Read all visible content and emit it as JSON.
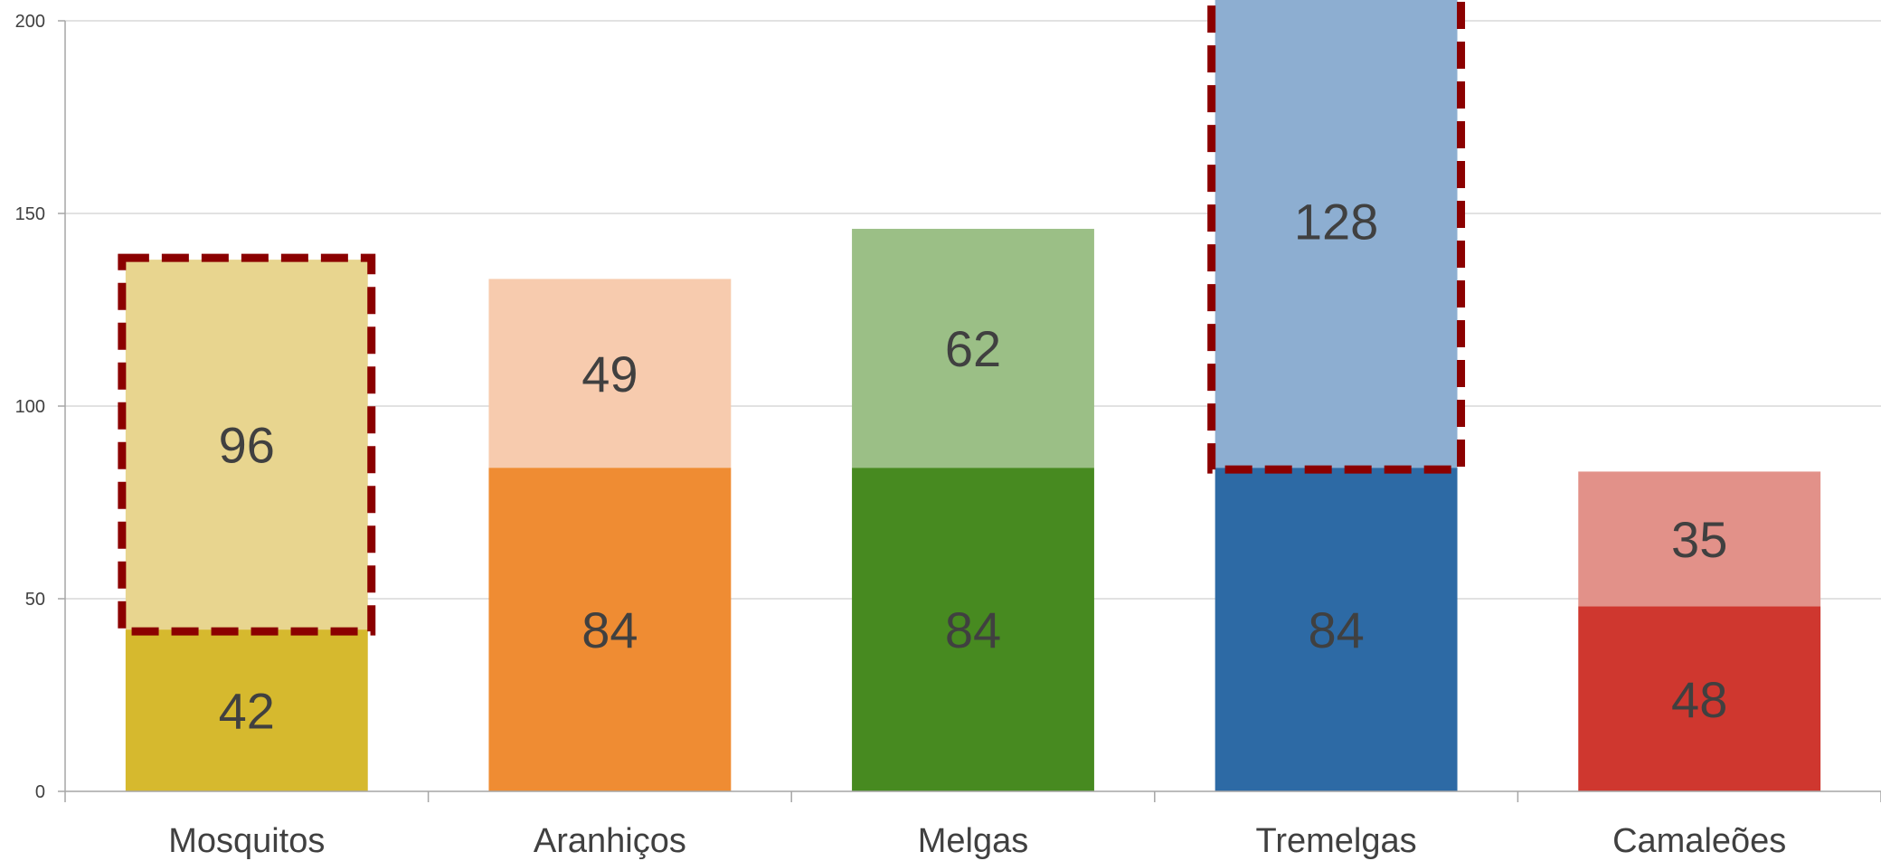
{
  "chart_data": {
    "type": "bar",
    "stacked": true,
    "categories": [
      "Mosquitos",
      "Aranhiços",
      "Melgas",
      "Tremelgas",
      "Camaleões"
    ],
    "series": [
      {
        "values": [
          42,
          84,
          84,
          84,
          48
        ],
        "colors": [
          "#d6b92e",
          "#ef8c33",
          "#478a20",
          "#2d6aa5",
          "#cf372f"
        ]
      },
      {
        "values": [
          96,
          49,
          62,
          128,
          35
        ],
        "colors": [
          "#e8d58f",
          "#f7cbae",
          "#9bbf86",
          "#8daed1",
          "#e29189"
        ]
      }
    ],
    "highlighted": [
      {
        "category": "Mosquitos",
        "series_index": 1
      },
      {
        "category": "Tremelgas",
        "series_index": 1
      }
    ],
    "highlight_color": "#8b0000",
    "ylim": [
      0,
      200
    ],
    "yticks": [
      "0",
      "50",
      "100",
      "150",
      "200"
    ],
    "ytick_values": [
      0,
      50,
      100,
      150,
      200
    ],
    "grid": true,
    "legend": "none",
    "label_color": "#404040",
    "grid_color": "#d9d9d9",
    "axis_color": "#a6a6a6"
  }
}
